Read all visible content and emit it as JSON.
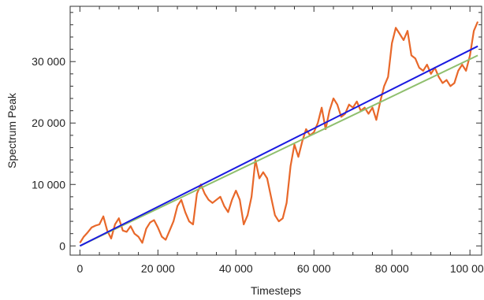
{
  "chart_data": {
    "type": "line",
    "title": "",
    "xlabel": "Timesteps",
    "ylabel": "Spectrum Peak",
    "xlim": [
      -2500,
      103000
    ],
    "ylim": [
      -1500,
      39000
    ],
    "grid": false,
    "legend": "none",
    "x_ticks": [
      0,
      20000,
      40000,
      60000,
      80000,
      100000
    ],
    "x_tick_labels": [
      "0",
      "20 000",
      "40 000",
      "60 000",
      "80 000",
      "100 000"
    ],
    "y_ticks": [
      0,
      10000,
      20000,
      30000
    ],
    "y_tick_labels": [
      "0",
      "10 000",
      "20 000",
      "30 000"
    ],
    "series": [
      {
        "color": "#e8682a",
        "x": [
          0,
          1000,
          2000,
          3000,
          4000,
          5000,
          6000,
          7000,
          8000,
          9000,
          10000,
          11000,
          12000,
          13000,
          14000,
          15000,
          16000,
          17000,
          18000,
          19000,
          20000,
          21000,
          22000,
          23000,
          24000,
          25000,
          26000,
          27000,
          28000,
          29000,
          30000,
          31000,
          32000,
          33000,
          34000,
          35000,
          36000,
          37000,
          38000,
          39000,
          40000,
          41000,
          42000,
          43000,
          44000,
          45000,
          46000,
          47000,
          48000,
          49000,
          50000,
          51000,
          52000,
          53000,
          54000,
          55000,
          56000,
          57000,
          58000,
          59000,
          60000,
          61000,
          62000,
          63000,
          64000,
          65000,
          66000,
          67000,
          68000,
          69000,
          70000,
          71000,
          72000,
          73000,
          74000,
          75000,
          76000,
          77000,
          78000,
          79000,
          80000,
          81000,
          82000,
          83000,
          84000,
          85000,
          86000,
          87000,
          88000,
          89000,
          90000,
          91000,
          92000,
          93000,
          94000,
          95000,
          96000,
          97000,
          98000,
          99000,
          100000,
          101000,
          102000
        ],
        "y": [
          500,
          1500,
          2200,
          3000,
          3300,
          3500,
          4800,
          2500,
          1200,
          3500,
          4500,
          2500,
          2300,
          3200,
          2000,
          1500,
          500,
          2800,
          3800,
          4200,
          3000,
          1500,
          1000,
          2500,
          4000,
          6500,
          7500,
          5500,
          4000,
          3500,
          8500,
          10000,
          8500,
          7500,
          7000,
          7500,
          8000,
          6500,
          5500,
          7500,
          9000,
          7500,
          3500,
          5000,
          8000,
          14000,
          11000,
          12000,
          11000,
          8000,
          5000,
          4000,
          4500,
          7000,
          13000,
          16500,
          14500,
          17000,
          19000,
          18000,
          18500,
          20000,
          22500,
          19000,
          22000,
          24000,
          23000,
          21000,
          21500,
          23000,
          22500,
          23500,
          22000,
          22500,
          21500,
          22500,
          20500,
          23500,
          26000,
          27500,
          33000,
          35500,
          34500,
          33500,
          35000,
          31000,
          30500,
          29000,
          28500,
          29500,
          28000,
          29000,
          27500,
          26500,
          27000,
          26000,
          26500,
          28500,
          29500,
          28500,
          31000,
          35000,
          36500
        ]
      },
      {
        "color": "#8fbf6e",
        "x": [
          0,
          102000
        ],
        "y": [
          0,
          31000
        ]
      },
      {
        "color": "#1a1ae0",
        "x": [
          0,
          102000
        ],
        "y": [
          0,
          32500
        ]
      }
    ]
  }
}
